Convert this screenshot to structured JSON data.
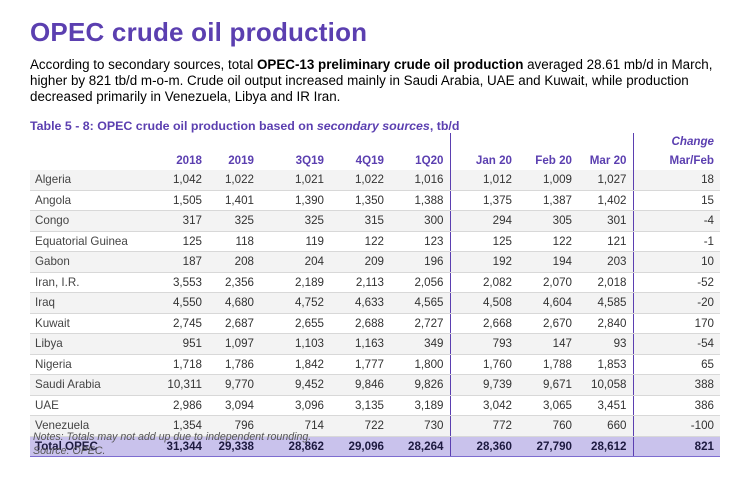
{
  "page": {
    "title": "OPEC crude oil production",
    "intro_part1": "According to secondary sources, total ",
    "intro_bold": "OPEC-13 preliminary crude oil production",
    "intro_part2": " averaged 28.61 mb/d in March, higher by 821 tb/d m-o-m. Crude oil output increased mainly in Saudi Arabia, UAE and Kuwait, while production decreased primarily in Venezuela, Libya and IR Iran.",
    "caption_part1": "Table 5 - 8: OPEC crude oil production based on ",
    "caption_italic": "secondary sources",
    "caption_part2": ", tb/d"
  },
  "table": {
    "change_label": "Change",
    "columns": [
      "2018",
      "2019",
      "3Q19",
      "4Q19",
      "1Q20",
      "Jan 20",
      "Feb 20",
      "Mar 20",
      "Mar/Feb"
    ],
    "rows": [
      {
        "name": "Algeria",
        "values": [
          "1,042",
          "1,022",
          "1,021",
          "1,022",
          "1,016",
          "1,012",
          "1,009",
          "1,027",
          "18"
        ]
      },
      {
        "name": "Angola",
        "values": [
          "1,505",
          "1,401",
          "1,390",
          "1,350",
          "1,388",
          "1,375",
          "1,387",
          "1,402",
          "15"
        ]
      },
      {
        "name": "Congo",
        "values": [
          "317",
          "325",
          "325",
          "315",
          "300",
          "294",
          "305",
          "301",
          "-4"
        ]
      },
      {
        "name": "Equatorial Guinea",
        "values": [
          "125",
          "118",
          "119",
          "122",
          "123",
          "125",
          "122",
          "121",
          "-1"
        ]
      },
      {
        "name": "Gabon",
        "values": [
          "187",
          "208",
          "204",
          "209",
          "196",
          "192",
          "194",
          "203",
          "10"
        ]
      },
      {
        "name": "Iran, I.R.",
        "values": [
          "3,553",
          "2,356",
          "2,189",
          "2,113",
          "2,056",
          "2,082",
          "2,070",
          "2,018",
          "-52"
        ]
      },
      {
        "name": "Iraq",
        "values": [
          "4,550",
          "4,680",
          "4,752",
          "4,633",
          "4,565",
          "4,508",
          "4,604",
          "4,585",
          "-20"
        ]
      },
      {
        "name": "Kuwait",
        "values": [
          "2,745",
          "2,687",
          "2,655",
          "2,688",
          "2,727",
          "2,668",
          "2,670",
          "2,840",
          "170"
        ]
      },
      {
        "name": "Libya",
        "values": [
          "951",
          "1,097",
          "1,103",
          "1,163",
          "349",
          "793",
          "147",
          "93",
          "-54"
        ]
      },
      {
        "name": "Nigeria",
        "values": [
          "1,718",
          "1,786",
          "1,842",
          "1,777",
          "1,800",
          "1,760",
          "1,788",
          "1,853",
          "65"
        ]
      },
      {
        "name": "Saudi Arabia",
        "values": [
          "10,311",
          "9,770",
          "9,452",
          "9,846",
          "9,826",
          "9,739",
          "9,671",
          "10,058",
          "388"
        ]
      },
      {
        "name": "UAE",
        "values": [
          "2,986",
          "3,094",
          "3,096",
          "3,135",
          "3,189",
          "3,042",
          "3,065",
          "3,451",
          "386"
        ]
      },
      {
        "name": "Venezuela",
        "values": [
          "1,354",
          "796",
          "714",
          "722",
          "730",
          "772",
          "760",
          "660",
          "-100"
        ]
      }
    ],
    "total": {
      "name": "Total  OPEC",
      "values": [
        "31,344",
        "29,338",
        "28,862",
        "29,096",
        "28,264",
        "28,360",
        "27,790",
        "28,612",
        "821"
      ]
    }
  },
  "footer": {
    "notes": "Notes: Totals may not add up due to independent rounding.",
    "source": "Source: OPEC."
  },
  "colors": {
    "accent": "#5b3fb0",
    "total_row_bg": "#c9c2ec"
  }
}
